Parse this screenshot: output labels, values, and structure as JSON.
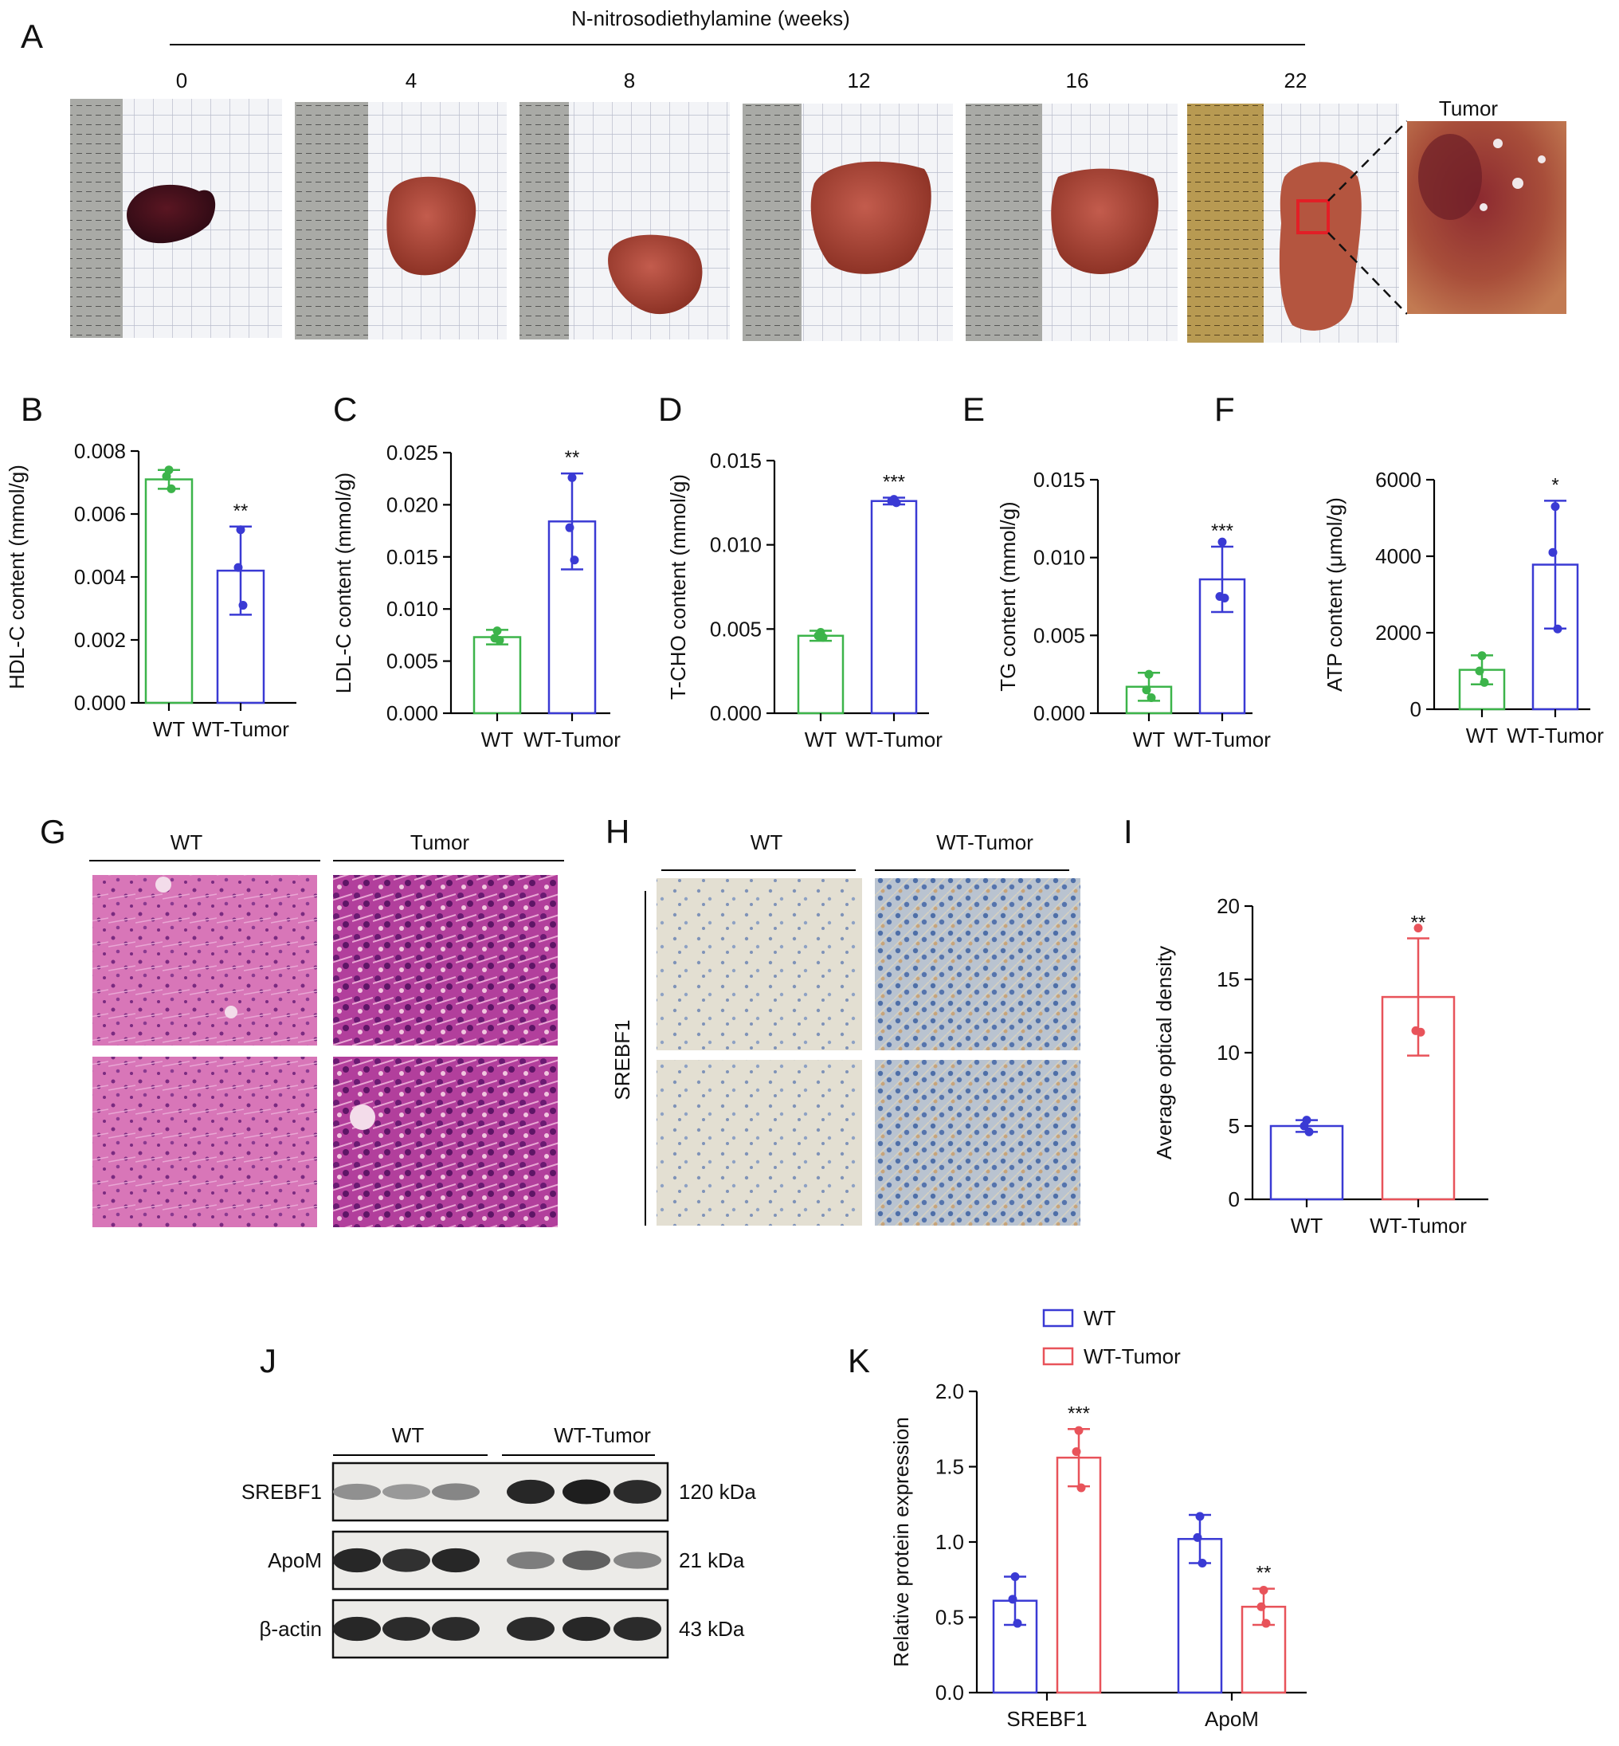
{
  "figure": {
    "panelA": {
      "label": "A",
      "header": "N-nitrosodiethylamine (weeks)",
      "timepoints": [
        "0",
        "4",
        "8",
        "12",
        "16",
        "22"
      ],
      "inset_label": "Tumor"
    },
    "panelG": {
      "label": "G",
      "cols": [
        "WT",
        "Tumor"
      ]
    },
    "panelH": {
      "label": "H",
      "cols": [
        "WT",
        "WT-Tumor"
      ],
      "row_label": "SREBF1"
    },
    "panelJ": {
      "label": "J",
      "groups": [
        "WT",
        "WT-Tumor"
      ],
      "rows": [
        {
          "protein": "SREBF1",
          "size": "120 kDa",
          "intensity": [
            0.35,
            0.3,
            0.4,
            0.9,
            0.95,
            0.88
          ]
        },
        {
          "protein": "ApoM",
          "size": "21 kDa",
          "intensity": [
            0.9,
            0.85,
            0.9,
            0.45,
            0.6,
            0.4
          ]
        },
        {
          "protein": "β-actin",
          "size": "43 kDa",
          "intensity": [
            0.9,
            0.88,
            0.88,
            0.88,
            0.9,
            0.88
          ]
        }
      ]
    }
  },
  "colors": {
    "wt_green": "#3cb44a",
    "wt_blue": "#3a3ad4",
    "tumor_blue": "#3a3ad4",
    "tumor_red": "#e8535a"
  },
  "chart_data": [
    {
      "id": "B",
      "type": "bar",
      "categories": [
        "WT",
        "WT-Tumor"
      ],
      "ylabel": "HDL-C content (mmol/g)",
      "ylim": [
        0,
        0.008
      ],
      "yticks": [
        "0.000",
        "0.002",
        "0.004",
        "0.006",
        "0.008"
      ],
      "values": [
        0.0071,
        0.0042
      ],
      "errors": [
        0.0003,
        0.0014
      ],
      "points": [
        [
          0.0074,
          0.0072,
          0.0068
        ],
        [
          0.0055,
          0.0043,
          0.0031
        ]
      ],
      "significance": [
        "",
        "**"
      ],
      "colors": [
        "#3cb44a",
        "#3a3ad4"
      ]
    },
    {
      "id": "C",
      "type": "bar",
      "categories": [
        "WT",
        "WT-Tumor"
      ],
      "ylabel": "LDL-C content (mmol/g)",
      "ylim": [
        0,
        0.025
      ],
      "yticks": [
        "0.000",
        "0.005",
        "0.010",
        "0.015",
        "0.020",
        "0.025"
      ],
      "values": [
        0.0073,
        0.0184
      ],
      "errors": [
        0.0007,
        0.0046
      ],
      "points": [
        [
          0.0079,
          0.0072,
          0.007
        ],
        [
          0.0226,
          0.0178,
          0.0147
        ]
      ],
      "significance": [
        "",
        "**"
      ],
      "colors": [
        "#3cb44a",
        "#3a3ad4"
      ]
    },
    {
      "id": "D",
      "type": "bar",
      "categories": [
        "WT",
        "WT-Tumor"
      ],
      "ylabel": "T-CHO content (mmol/g)",
      "ylim": [
        0,
        0.015
      ],
      "yticks": [
        "0.000",
        "0.005",
        "0.010",
        "0.015"
      ],
      "values": [
        0.0046,
        0.0126
      ],
      "errors": [
        0.0003,
        0.0002
      ],
      "points": [
        [
          0.0048,
          0.0046,
          0.0045
        ],
        [
          0.0127,
          0.0126,
          0.0125
        ]
      ],
      "significance": [
        "",
        "***"
      ],
      "colors": [
        "#3cb44a",
        "#3a3ad4"
      ]
    },
    {
      "id": "E",
      "type": "bar",
      "categories": [
        "WT",
        "WT-Tumor"
      ],
      "ylabel": "TG content (mmol/g)",
      "ylim": [
        0,
        0.015
      ],
      "yticks": [
        "0.000",
        "0.005",
        "0.010",
        "0.015"
      ],
      "values": [
        0.0017,
        0.0086
      ],
      "errors": [
        0.0009,
        0.0021
      ],
      "points": [
        [
          0.0025,
          0.0015,
          0.001
        ],
        [
          0.011,
          0.0075,
          0.0074
        ]
      ],
      "significance": [
        "",
        "***"
      ],
      "colors": [
        "#3cb44a",
        "#3a3ad4"
      ]
    },
    {
      "id": "F",
      "type": "bar",
      "categories": [
        "WT",
        "WT-Tumor"
      ],
      "ylabel": "ATP content (μmol/g)",
      "ylim": [
        0,
        6000
      ],
      "yticks": [
        "0",
        "2000",
        "4000",
        "6000"
      ],
      "values": [
        1030,
        3780
      ],
      "errors": [
        380,
        1670
      ],
      "points": [
        [
          1400,
          1000,
          700
        ],
        [
          5300,
          4100,
          2100
        ]
      ],
      "significance": [
        "",
        "*"
      ],
      "colors": [
        "#3cb44a",
        "#3a3ad4"
      ]
    },
    {
      "id": "I",
      "type": "bar",
      "categories": [
        "WT",
        "WT-Tumor"
      ],
      "ylabel": "Average optical density",
      "ylim": [
        0,
        20
      ],
      "yticks": [
        "0",
        "5",
        "10",
        "15",
        "20"
      ],
      "values": [
        5.0,
        13.8
      ],
      "errors": [
        0.4,
        4.0
      ],
      "points": [
        [
          5.4,
          5.0,
          4.6
        ],
        [
          18.5,
          11.5,
          11.4
        ]
      ],
      "significance": [
        "",
        "**"
      ],
      "colors": [
        "#3a3ad4",
        "#e8535a"
      ]
    },
    {
      "id": "K",
      "type": "bar",
      "categories": [
        "SREBF1",
        "ApoM"
      ],
      "ylabel": "Relative protein expression",
      "ylim": [
        0,
        2.0
      ],
      "yticks": [
        "0.0",
        "0.5",
        "1.0",
        "1.5",
        "2.0"
      ],
      "series": [
        {
          "name": "WT",
          "values": [
            0.61,
            1.02
          ],
          "errors": [
            0.16,
            0.16
          ],
          "points": [
            [
              0.77,
              0.62,
              0.46
            ],
            [
              1.17,
              1.03,
              0.86
            ]
          ],
          "significance": [
            "",
            ""
          ]
        },
        {
          "name": "WT-Tumor",
          "values": [
            1.56,
            0.57
          ],
          "errors": [
            0.19,
            0.12
          ],
          "points": [
            [
              1.74,
              1.6,
              1.36
            ],
            [
              0.68,
              0.57,
              0.46
            ]
          ],
          "significance": [
            "***",
            "**"
          ]
        }
      ],
      "colors": [
        "#3a3ad4",
        "#e8535a"
      ]
    }
  ]
}
